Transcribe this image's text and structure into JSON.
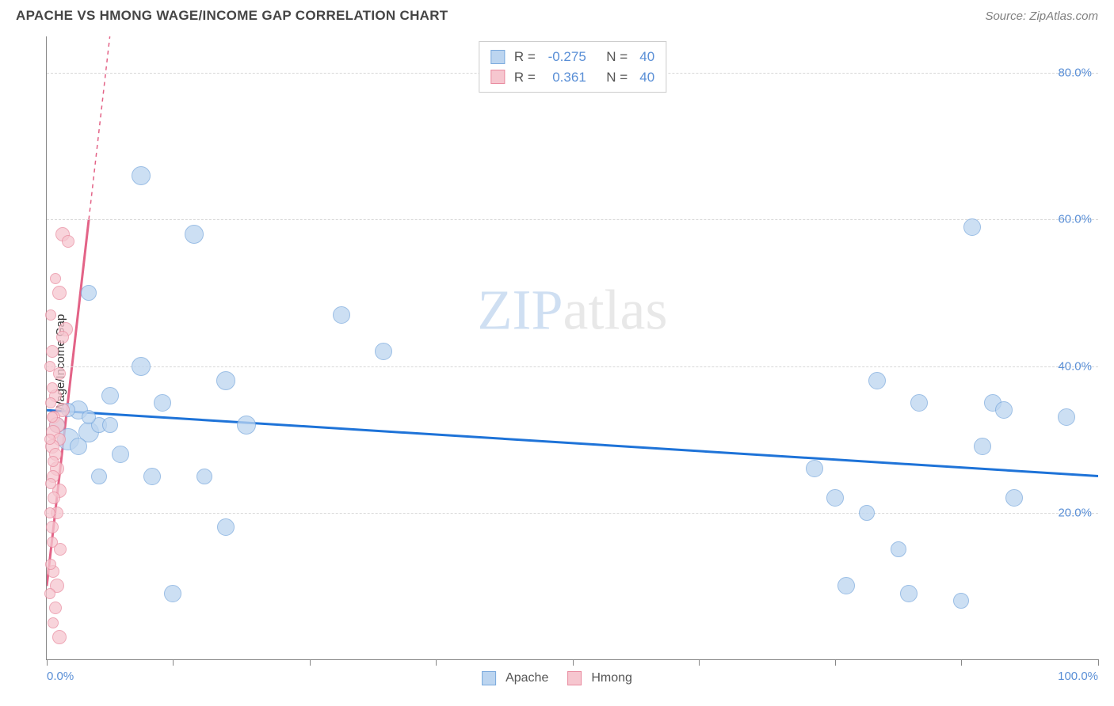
{
  "title": "APACHE VS HMONG WAGE/INCOME GAP CORRELATION CHART",
  "source": "Source: ZipAtlas.com",
  "ylabel": "Wage/Income Gap",
  "watermark": {
    "part1": "ZIP",
    "part2": "atlas"
  },
  "chart": {
    "type": "scatter",
    "background_color": "#ffffff",
    "grid_color": "#d8d8d8",
    "axis_color": "#888888",
    "xlim": [
      0,
      100
    ],
    "ylim": [
      0,
      85
    ],
    "x_ticks": [
      0,
      12,
      25,
      37,
      50,
      62,
      75,
      87,
      100
    ],
    "x_tick_labels": {
      "0": "0.0%",
      "100": "100.0%"
    },
    "y_gridlines": [
      20,
      40,
      60,
      80
    ],
    "y_tick_labels": [
      "20.0%",
      "40.0%",
      "60.0%",
      "80.0%"
    ],
    "series": [
      {
        "name": "Apache",
        "color_fill": "#bcd5f0",
        "color_stroke": "#7aa9dd",
        "R": "-0.275",
        "N": "40",
        "trend": {
          "x1": 0,
          "y1": 34,
          "x2": 100,
          "y2": 25,
          "color": "#1e73d8",
          "width": 3,
          "dash": false
        },
        "points": [
          {
            "x": 9,
            "y": 66,
            "r": 12
          },
          {
            "x": 14,
            "y": 58,
            "r": 12
          },
          {
            "x": 88,
            "y": 59,
            "r": 11
          },
          {
            "x": 4,
            "y": 50,
            "r": 10
          },
          {
            "x": 28,
            "y": 47,
            "r": 11
          },
          {
            "x": 17,
            "y": 38,
            "r": 12
          },
          {
            "x": 9,
            "y": 40,
            "r": 12
          },
          {
            "x": 32,
            "y": 42,
            "r": 11
          },
          {
            "x": 6,
            "y": 36,
            "r": 11
          },
          {
            "x": 3,
            "y": 34,
            "r": 12
          },
          {
            "x": 2,
            "y": 30,
            "r": 14
          },
          {
            "x": 1,
            "y": 32,
            "r": 10
          },
          {
            "x": 4,
            "y": 31,
            "r": 13
          },
          {
            "x": 5,
            "y": 32,
            "r": 10
          },
          {
            "x": 3,
            "y": 29,
            "r": 11
          },
          {
            "x": 11,
            "y": 35,
            "r": 11
          },
          {
            "x": 19,
            "y": 32,
            "r": 12
          },
          {
            "x": 7,
            "y": 28,
            "r": 11
          },
          {
            "x": 5,
            "y": 25,
            "r": 10
          },
          {
            "x": 10,
            "y": 25,
            "r": 11
          },
          {
            "x": 15,
            "y": 25,
            "r": 10
          },
          {
            "x": 17,
            "y": 18,
            "r": 11
          },
          {
            "x": 12,
            "y": 9,
            "r": 11
          },
          {
            "x": 6,
            "y": 32,
            "r": 10
          },
          {
            "x": 4,
            "y": 33,
            "r": 9
          },
          {
            "x": 2,
            "y": 34,
            "r": 9
          },
          {
            "x": 79,
            "y": 38,
            "r": 11
          },
          {
            "x": 83,
            "y": 35,
            "r": 11
          },
          {
            "x": 90,
            "y": 35,
            "r": 11
          },
          {
            "x": 91,
            "y": 34,
            "r": 11
          },
          {
            "x": 97,
            "y": 33,
            "r": 11
          },
          {
            "x": 89,
            "y": 29,
            "r": 11
          },
          {
            "x": 73,
            "y": 26,
            "r": 11
          },
          {
            "x": 75,
            "y": 22,
            "r": 11
          },
          {
            "x": 92,
            "y": 22,
            "r": 11
          },
          {
            "x": 78,
            "y": 20,
            "r": 10
          },
          {
            "x": 81,
            "y": 15,
            "r": 10
          },
          {
            "x": 76,
            "y": 10,
            "r": 11
          },
          {
            "x": 82,
            "y": 9,
            "r": 11
          },
          {
            "x": 87,
            "y": 8,
            "r": 10
          }
        ]
      },
      {
        "name": "Hmong",
        "color_fill": "#f6c6cf",
        "color_stroke": "#e98ca0",
        "R": "0.361",
        "N": "40",
        "trend": {
          "x1": 0,
          "y1": 10,
          "x2": 6,
          "y2": 85,
          "color": "#e36387",
          "width": 3,
          "dash": true,
          "dash_from_y": 60
        },
        "points": [
          {
            "x": 1.5,
            "y": 58,
            "r": 9
          },
          {
            "x": 2,
            "y": 57,
            "r": 8
          },
          {
            "x": 1.2,
            "y": 50,
            "r": 9
          },
          {
            "x": 1.8,
            "y": 45,
            "r": 9
          },
          {
            "x": 1.5,
            "y": 44,
            "r": 8
          },
          {
            "x": 1.2,
            "y": 39,
            "r": 8
          },
          {
            "x": 0.8,
            "y": 36,
            "r": 8
          },
          {
            "x": 1.5,
            "y": 34,
            "r": 9
          },
          {
            "x": 0.7,
            "y": 33,
            "r": 8
          },
          {
            "x": 1.0,
            "y": 32,
            "r": 10
          },
          {
            "x": 0.6,
            "y": 31,
            "r": 9
          },
          {
            "x": 1.2,
            "y": 30,
            "r": 8
          },
          {
            "x": 0.5,
            "y": 29,
            "r": 9
          },
          {
            "x": 0.8,
            "y": 28,
            "r": 8
          },
          {
            "x": 1.0,
            "y": 26,
            "r": 9
          },
          {
            "x": 0.6,
            "y": 25,
            "r": 8
          },
          {
            "x": 1.2,
            "y": 23,
            "r": 9
          },
          {
            "x": 0.7,
            "y": 22,
            "r": 8
          },
          {
            "x": 1.0,
            "y": 20,
            "r": 8
          },
          {
            "x": 0.5,
            "y": 18,
            "r": 8
          },
          {
            "x": 1.3,
            "y": 15,
            "r": 8
          },
          {
            "x": 0.6,
            "y": 12,
            "r": 8
          },
          {
            "x": 1.0,
            "y": 10,
            "r": 9
          },
          {
            "x": 0.8,
            "y": 7,
            "r": 8
          },
          {
            "x": 1.2,
            "y": 3,
            "r": 9
          },
          {
            "x": 0.4,
            "y": 35,
            "r": 7
          },
          {
            "x": 0.5,
            "y": 33,
            "r": 7
          },
          {
            "x": 0.3,
            "y": 30,
            "r": 7
          },
          {
            "x": 0.6,
            "y": 27,
            "r": 7
          },
          {
            "x": 0.4,
            "y": 24,
            "r": 7
          },
          {
            "x": 0.3,
            "y": 20,
            "r": 7
          },
          {
            "x": 0.5,
            "y": 16,
            "r": 7
          },
          {
            "x": 0.4,
            "y": 13,
            "r": 7
          },
          {
            "x": 0.3,
            "y": 9,
            "r": 7
          },
          {
            "x": 0.6,
            "y": 5,
            "r": 7
          },
          {
            "x": 0.5,
            "y": 42,
            "r": 8
          },
          {
            "x": 0.4,
            "y": 47,
            "r": 7
          },
          {
            "x": 0.8,
            "y": 52,
            "r": 7
          },
          {
            "x": 0.3,
            "y": 40,
            "r": 7
          },
          {
            "x": 0.5,
            "y": 37,
            "r": 7
          }
        ]
      }
    ],
    "legend_bottom": [
      {
        "label": "Apache",
        "fill": "#bcd5f0",
        "stroke": "#7aa9dd"
      },
      {
        "label": "Hmong",
        "fill": "#f6c6cf",
        "stroke": "#e98ca0"
      }
    ]
  }
}
